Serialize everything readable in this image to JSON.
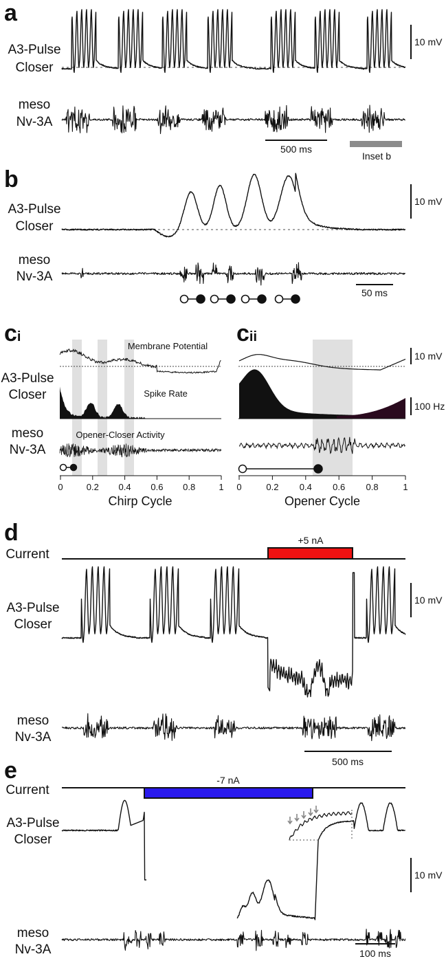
{
  "panels": {
    "a": {
      "letter": "a",
      "trace1": [
        "A3-Pulse",
        "Closer"
      ],
      "trace2": [
        "meso",
        "Nv-3A"
      ],
      "scale_v": "10 mV",
      "scale_t": "500 ms",
      "inset": "Inset b"
    },
    "b": {
      "letter": "b",
      "trace1": [
        "A3-Pulse",
        "Closer"
      ],
      "trace2": [
        "meso",
        "Nv-3A"
      ],
      "scale_v": "10 mV",
      "scale_t": "50 ms"
    },
    "ci": {
      "letter": "c",
      "sub": "i",
      "row1": [
        "A3-Pulse",
        "Closer"
      ],
      "row2": [
        "meso",
        "Nv-3A"
      ],
      "membrane": "Membrane Potential",
      "spike": "Spike Rate",
      "activity": "Opener-Closer Activity",
      "xlabel": "Chirp Cycle",
      "ticks": [
        "0",
        "0.2",
        "0.4",
        "0.6",
        "0.8",
        "1"
      ]
    },
    "cii": {
      "letter": "c",
      "sub": "ii",
      "scale_v": "10 mV",
      "scale_hz": "100 Hz",
      "xlabel": "Opener Cycle",
      "ticks": [
        "0",
        "0.2",
        "0.4",
        "0.6",
        "0.8",
        "1"
      ]
    },
    "d": {
      "letter": "d",
      "current_label": "Current",
      "current_value": "+5 nA",
      "trace1": [
        "A3-Pulse",
        "Closer"
      ],
      "trace2": [
        "meso",
        "Nv-3A"
      ],
      "scale_v": "10 mV",
      "scale_t": "500 ms",
      "pulse_color": "#ee1111"
    },
    "e": {
      "letter": "e",
      "current_label": "Current",
      "current_value": "-7 nA",
      "trace1": [
        "A3-Pulse",
        "Closer"
      ],
      "trace2": [
        "meso",
        "Nv-3A"
      ],
      "scale_v": "10 mV",
      "scale_t": "100 ms",
      "pulse_color": "#2a1aee"
    }
  }
}
